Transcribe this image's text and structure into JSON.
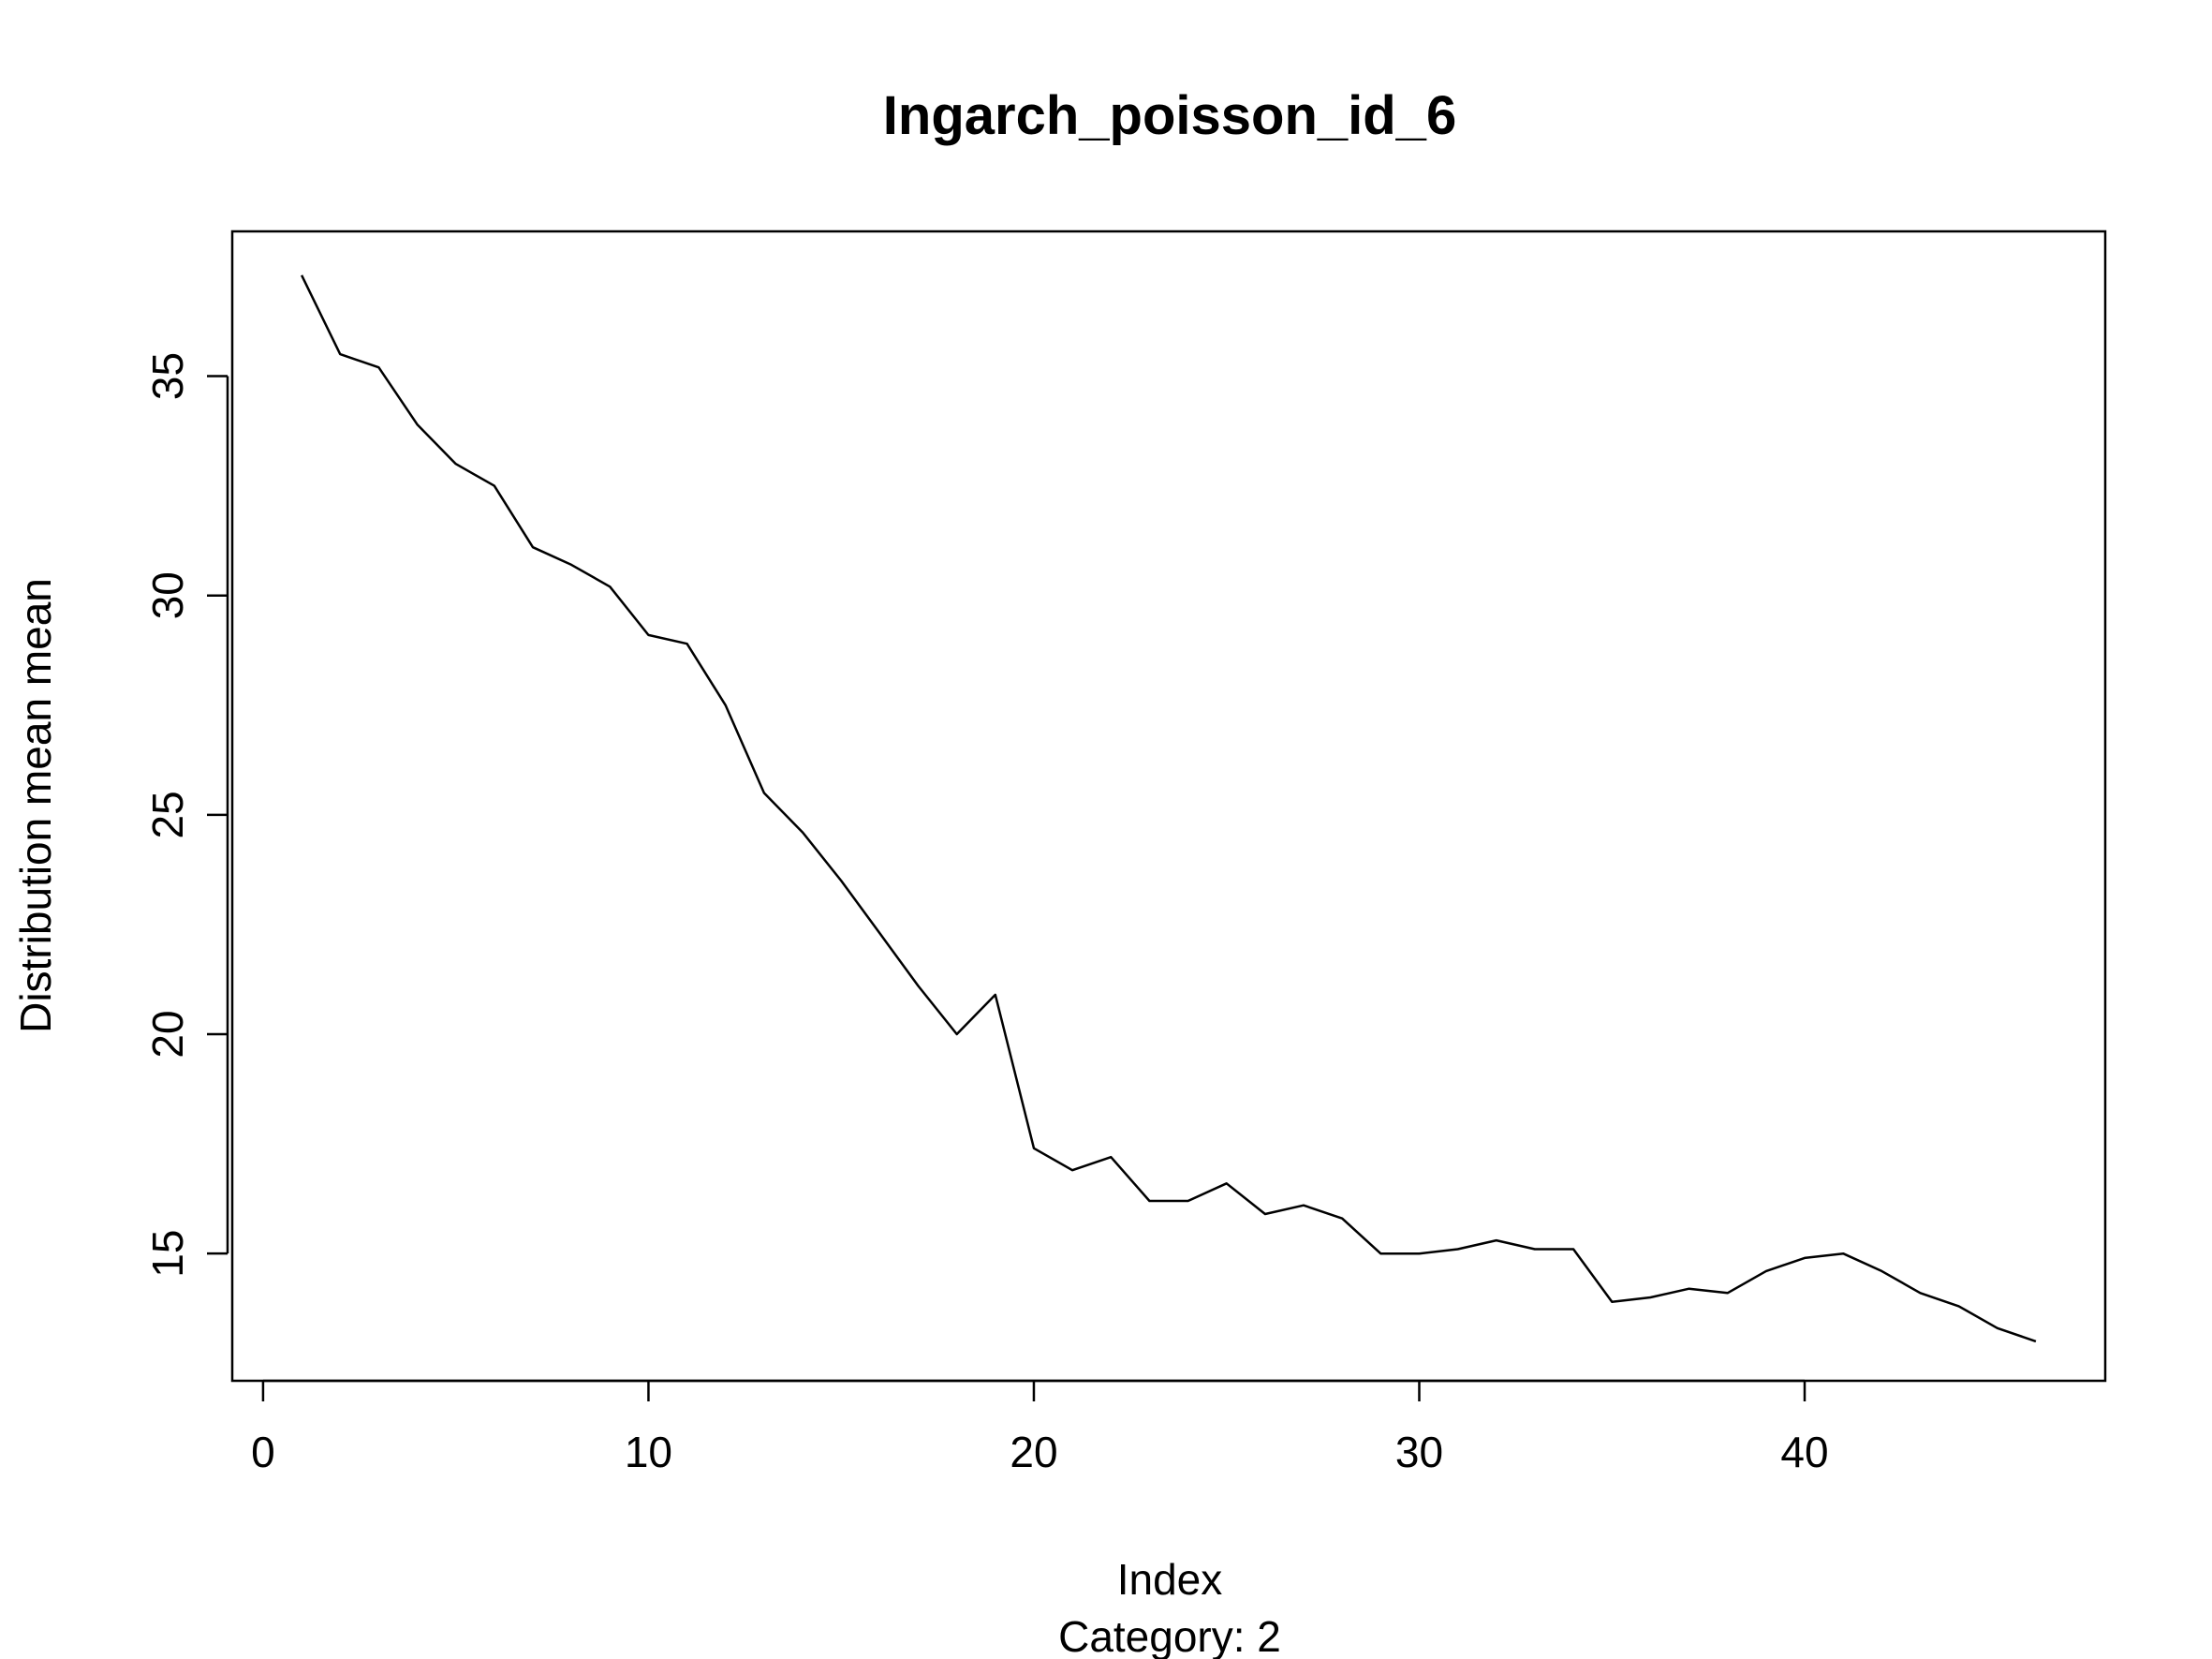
{
  "chart_data": {
    "type": "line",
    "title": "Ingarch_poisson_id_6",
    "xlabel": "Index",
    "ylabel": "Distribution mean mean",
    "subtitle": "Category: 2",
    "xlim": [
      -0.8,
      47.8
    ],
    "ylim": [
      12.1,
      38.3
    ],
    "x_ticks": [
      0,
      10,
      20,
      30,
      40
    ],
    "y_ticks": [
      15,
      20,
      25,
      30,
      35
    ],
    "grid": false,
    "line_color": "#000000",
    "series": [
      {
        "x": [
          1,
          2,
          3,
          4,
          5,
          6,
          7,
          8,
          9,
          10,
          11,
          12,
          13,
          14,
          15,
          16,
          17,
          18,
          19,
          20,
          21,
          22,
          23,
          24,
          25,
          26,
          27,
          28,
          29,
          30,
          31,
          32,
          33,
          34,
          35,
          36,
          37,
          38,
          39,
          40,
          41,
          42,
          43,
          44,
          45,
          46
        ],
        "values": [
          37.3,
          35.5,
          35.2,
          33.9,
          33.0,
          32.5,
          31.1,
          30.7,
          30.2,
          29.1,
          28.9,
          27.5,
          25.5,
          24.6,
          23.5,
          22.3,
          21.1,
          20.0,
          20.9,
          17.4,
          16.9,
          17.2,
          16.2,
          16.2,
          16.6,
          15.9,
          16.1,
          15.8,
          15.0,
          15.0,
          15.1,
          15.3,
          15.1,
          15.1,
          13.9,
          14.0,
          14.2,
          14.1,
          14.6,
          14.9,
          15.0,
          14.6,
          14.1,
          13.8,
          13.3,
          13.0
        ]
      }
    ]
  }
}
